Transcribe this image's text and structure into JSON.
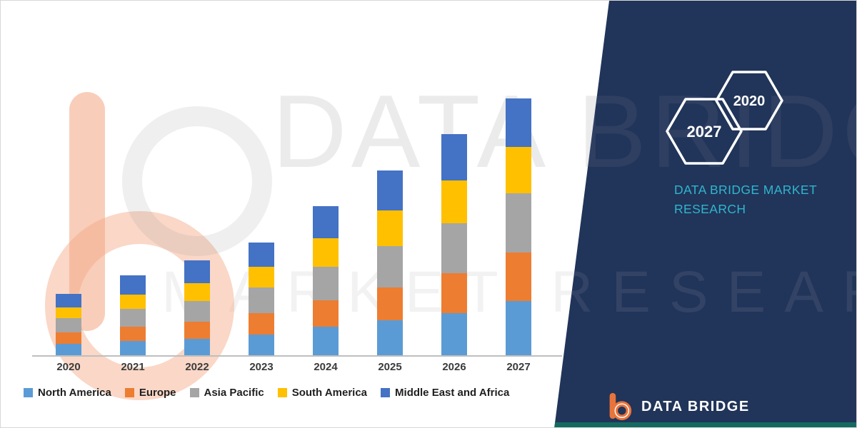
{
  "chart_data": {
    "type": "bar",
    "stacked": true,
    "title": "",
    "xlabel": "",
    "ylabel": "",
    "categories": [
      "2020",
      "2021",
      "2022",
      "2023",
      "2024",
      "2025",
      "2026",
      "2027"
    ],
    "series": [
      {
        "name": "North America",
        "color": "#5B9BD5",
        "values": [
          4.5,
          5.5,
          6.5,
          8,
          11,
          13.5,
          16.5,
          21
        ]
      },
      {
        "name": "Europe",
        "color": "#ED7D31",
        "values": [
          4.5,
          5.5,
          6.5,
          8.5,
          10.5,
          13,
          15.5,
          19
        ]
      },
      {
        "name": "Asia Pacific",
        "color": "#A5A5A5",
        "values": [
          5.5,
          7,
          8,
          10,
          13,
          16,
          19.5,
          23
        ]
      },
      {
        "name": "South America",
        "color": "#FFC000",
        "values": [
          4,
          5.5,
          7,
          8,
          11,
          14,
          16.5,
          18
        ]
      },
      {
        "name": "Middle East and Africa",
        "color": "#4472C4",
        "values": [
          5.5,
          7.5,
          9,
          9.5,
          12.5,
          15.5,
          18,
          19
        ]
      }
    ],
    "ylim": [
      0,
      110
    ],
    "grid": false,
    "legend_position": "bottom",
    "values_estimated": true
  },
  "side_panel": {
    "background_color": "#213459",
    "accent_color": "#2FB6CE",
    "hexagons": [
      {
        "label": "2027"
      },
      {
        "label": "2020"
      }
    ],
    "brand_line1": "DATA BRIDGE MARKET",
    "brand_line2": "RESEARCH"
  },
  "footer_logo": {
    "text": "DATA BRIDGE",
    "icon": "data-bridge-b-icon",
    "icon_color": "#E8743B"
  },
  "watermark": {
    "line1": "DATA BRIDGE",
    "line2": "MARKET RESEARCH"
  }
}
